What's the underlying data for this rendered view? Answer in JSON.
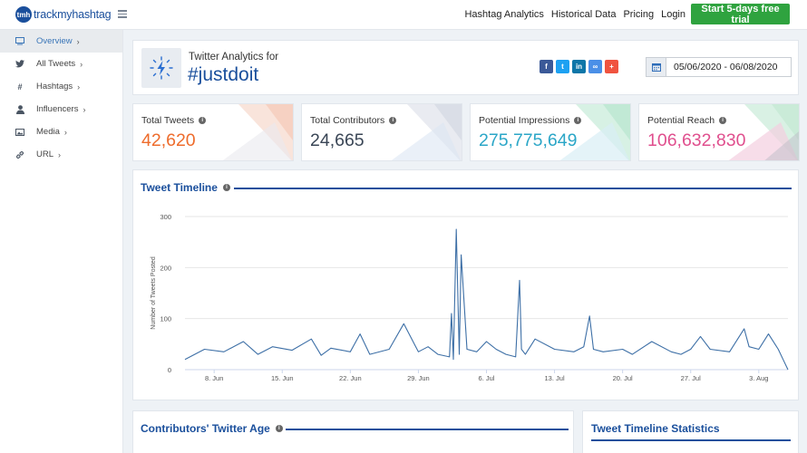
{
  "brand": {
    "badge": "tmh",
    "name": "trackmyhashtag"
  },
  "topnav": {
    "items": [
      "Hashtag Analytics",
      "Historical Data",
      "Pricing",
      "Login"
    ],
    "cta": "Start 5-days free trial"
  },
  "sidebar": {
    "items": [
      {
        "label": "Overview",
        "icon": "monitor-icon",
        "active": true
      },
      {
        "label": "All Tweets",
        "icon": "twitter-bird-icon"
      },
      {
        "label": "Hashtags",
        "icon": "hash-icon"
      },
      {
        "label": "Influencers",
        "icon": "user-icon"
      },
      {
        "label": "Media",
        "icon": "image-icon"
      },
      {
        "label": "URL",
        "icon": "link-icon"
      }
    ]
  },
  "header": {
    "subtitle": "Twitter Analytics for",
    "hashtag": "#justdoit",
    "share_buttons": [
      {
        "glyph": "f",
        "icon": "facebook-icon",
        "color": "#3b5998"
      },
      {
        "glyph": "t",
        "icon": "twitter-icon",
        "color": "#1da1f2"
      },
      {
        "glyph": "in",
        "icon": "linkedin-icon",
        "color": "#0e76a8"
      },
      {
        "glyph": "∞",
        "icon": "link-icon",
        "color": "#4a8fe7"
      },
      {
        "glyph": "+",
        "icon": "plus-icon",
        "color": "#f0533f"
      }
    ],
    "date_range": "05/06/2020 - 06/08/2020"
  },
  "stats": [
    {
      "label": "Total Tweets",
      "value": "42,620",
      "color": "#ee6c2c"
    },
    {
      "label": "Total Contributors",
      "value": "24,665",
      "color": "#3a4656"
    },
    {
      "label": "Potential Impressions",
      "value": "275,775,649",
      "color": "#2aa6c7"
    },
    {
      "label": "Potential Reach",
      "value": "106,632,830",
      "color": "#e04f8e"
    }
  ],
  "timeline": {
    "title": "Tweet Timeline"
  },
  "chart_data": {
    "type": "line",
    "ylabel": "Number of Tweets Posted",
    "ylim": [
      0,
      300
    ],
    "yticks": [
      0,
      100,
      200,
      300
    ],
    "xtick_labels": [
      "8. Jun",
      "15. Jun",
      "22. Jun",
      "29. Jun",
      "6. Jul",
      "13. Jul",
      "20. Jul",
      "27. Jul",
      "3. Aug"
    ],
    "x_range_days": [
      0,
      62
    ],
    "series_color": "#3d6fa6",
    "series": [
      {
        "x": [
          0,
          2,
          4,
          6,
          7.5,
          9,
          11,
          13,
          14,
          15,
          17,
          18,
          19,
          21,
          22.5,
          24,
          25,
          26,
          27.2,
          27.4,
          27.6,
          27.9,
          28.2,
          28.4,
          29,
          30,
          31,
          32,
          33,
          34,
          34.4,
          34.6,
          35,
          36,
          38,
          40,
          41,
          41.6,
          42,
          43,
          45,
          46,
          48,
          50,
          51,
          52,
          53,
          54,
          56,
          57.5,
          58,
          59,
          60,
          61,
          61.5,
          62
        ],
        "y": [
          20,
          40,
          35,
          55,
          30,
          45,
          38,
          60,
          28,
          42,
          35,
          70,
          30,
          40,
          90,
          35,
          45,
          30,
          25,
          110,
          20,
          275,
          30,
          225,
          40,
          35,
          55,
          40,
          30,
          25,
          175,
          40,
          30,
          60,
          40,
          35,
          45,
          105,
          40,
          35,
          40,
          30,
          55,
          35,
          30,
          40,
          65,
          40,
          35,
          80,
          45,
          40,
          70,
          40,
          20,
          0
        ]
      }
    ]
  },
  "lower": {
    "age_title": "Contributors' Twitter Age",
    "stats_title": "Tweet Timeline Statistics"
  }
}
